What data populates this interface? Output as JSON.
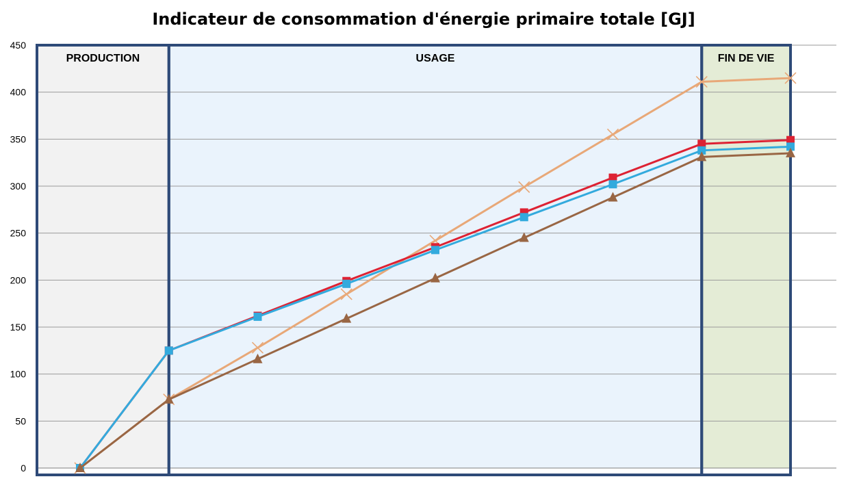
{
  "chart_data": {
    "type": "line",
    "title": "Indicateur de consommation d'énergie primaire totale [GJ]",
    "xlabel": "",
    "ylabel": "",
    "ylim": [
      0,
      450
    ],
    "yticks": [
      0,
      50,
      100,
      150,
      200,
      250,
      300,
      350,
      400,
      450
    ],
    "grid": true,
    "x": [
      0,
      1,
      2,
      3,
      4,
      5,
      6,
      7,
      8
    ],
    "phases": [
      {
        "label": "PRODUCTION",
        "from": 0,
        "to": 1,
        "color": "#f2f2f2"
      },
      {
        "label": "USAGE",
        "from": 1,
        "to": 7,
        "color": "#eaf3fc"
      },
      {
        "label": "FIN DE VIE",
        "from": 7,
        "to": 8,
        "color": "#e4ecd6"
      }
    ],
    "series": [
      {
        "color": "#e8a878",
        "marker": "cross",
        "values": [
          0,
          73,
          128,
          185,
          242,
          299,
          355,
          411,
          415
        ]
      },
      {
        "color": "#dd2233",
        "marker": "square",
        "values": [
          0,
          125,
          162,
          199,
          235,
          272,
          309,
          345,
          349
        ]
      },
      {
        "color": "#33aadd",
        "marker": "square",
        "values": [
          0,
          125,
          161,
          196,
          232,
          267,
          302,
          338,
          342
        ]
      },
      {
        "color": "#996644",
        "marker": "triangle",
        "values": [
          0,
          73,
          116,
          159,
          202,
          245,
          288,
          331,
          335
        ]
      }
    ]
  },
  "colors": {
    "phase_border": "#2e4a78",
    "grid": "#9a9a9a",
    "axis": "#7f7f7f"
  }
}
